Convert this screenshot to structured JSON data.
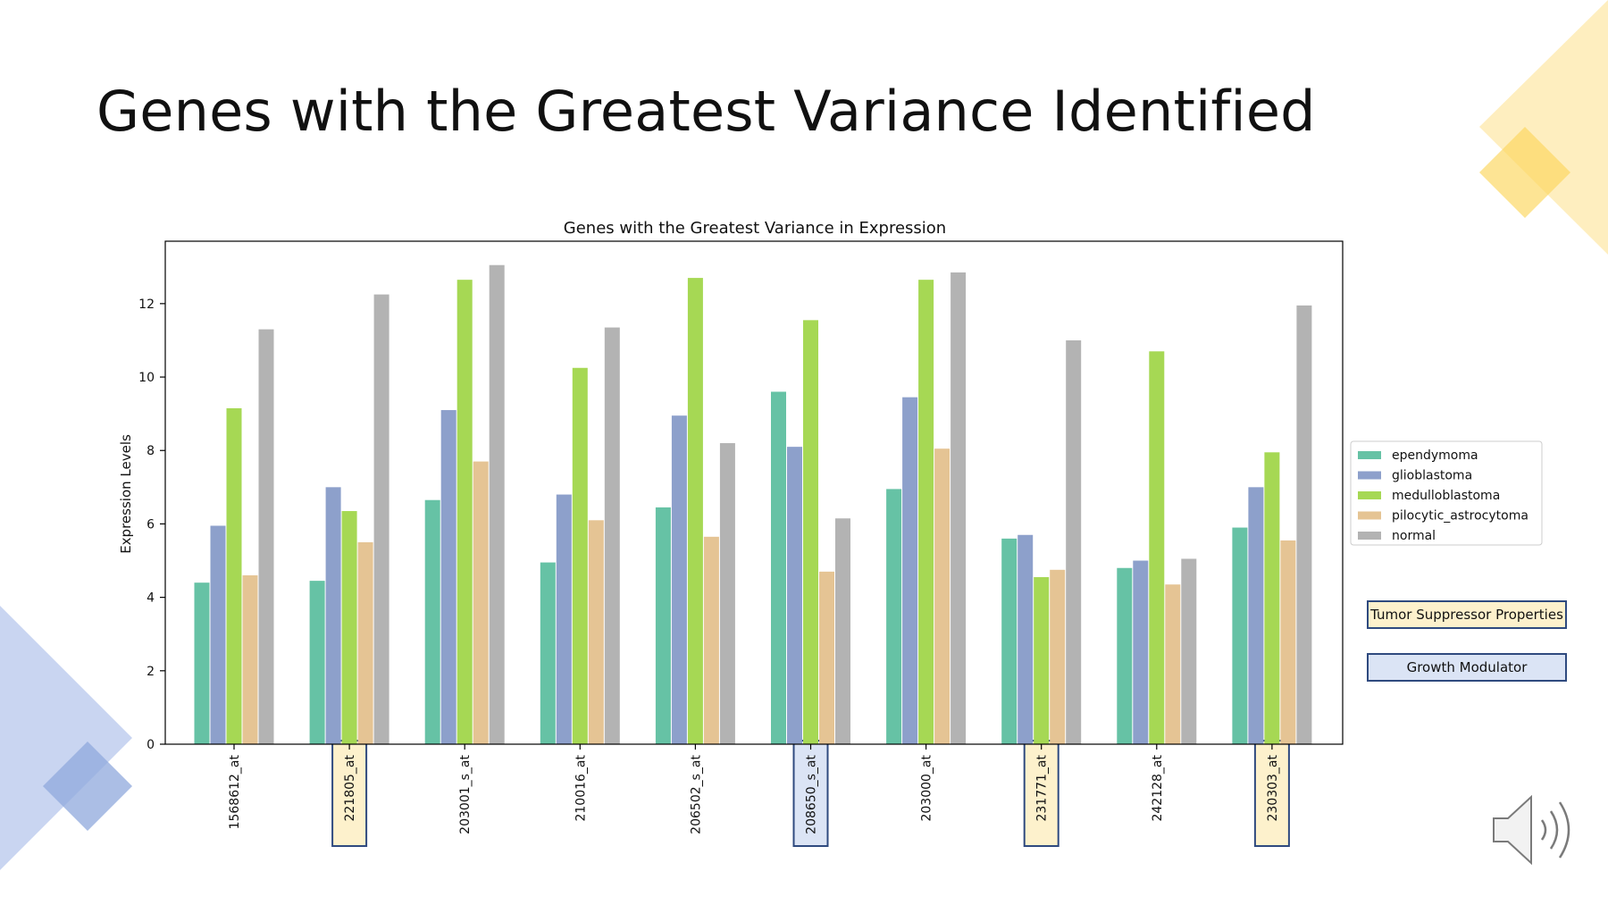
{
  "slide": {
    "title": "Genes with the Greatest Variance Identified"
  },
  "callouts": [
    {
      "label": "Tumor Suppressor Properties",
      "color": "#fdf1cc",
      "genes": [
        "221805_at",
        "231771_at",
        "230303_at"
      ]
    },
    {
      "label": "Growth Modulator",
      "color": "#dbe4f5",
      "genes": [
        "208650_s_at"
      ]
    }
  ],
  "colors": {
    "accent_yellow": "#fde08a",
    "accent_blue": "#b7c7ec",
    "callout_border": "#2f4a7f"
  },
  "icons": [
    "speaker-icon"
  ],
  "chart_data": {
    "type": "bar",
    "title": "Genes with the Greatest Variance in Expression",
    "xlabel": "",
    "ylabel": "Expression Levels",
    "ylim": [
      0,
      13.7
    ],
    "yticks": [
      0,
      2,
      4,
      6,
      8,
      10,
      12
    ],
    "grid": false,
    "legend_position": "right",
    "categories": [
      "1568612_at",
      "221805_at",
      "203001_s_at",
      "210016_at",
      "206502_s_at",
      "208650_s_at",
      "203000_at",
      "231771_at",
      "242128_at",
      "230303_at"
    ],
    "highlighted": {
      "221805_at": "#fdf1cc",
      "231771_at": "#fdf1cc",
      "230303_at": "#fdf1cc",
      "208650_s_at": "#dbe4f5"
    },
    "series": [
      {
        "name": "ependymoma",
        "color": "#66c2a5",
        "values": [
          4.4,
          4.45,
          6.65,
          4.95,
          6.45,
          9.6,
          6.95,
          5.6,
          4.8,
          5.9
        ]
      },
      {
        "name": "glioblastoma",
        "color": "#8da0cb",
        "values": [
          5.95,
          7.0,
          9.1,
          6.8,
          8.95,
          8.1,
          9.45,
          5.7,
          5.0,
          7.0
        ]
      },
      {
        "name": "medulloblastoma",
        "color": "#a6d854",
        "values": [
          9.15,
          6.35,
          12.65,
          10.25,
          12.7,
          11.55,
          12.65,
          4.55,
          10.7,
          7.95
        ]
      },
      {
        "name": "pilocytic_astrocytoma",
        "color": "#e5c494",
        "values": [
          4.6,
          5.5,
          7.7,
          6.1,
          5.65,
          4.7,
          8.05,
          4.75,
          4.35,
          5.55
        ]
      },
      {
        "name": "normal",
        "color": "#b3b3b3",
        "values": [
          11.3,
          12.25,
          13.05,
          11.35,
          8.2,
          6.15,
          12.85,
          11.0,
          5.05,
          11.95
        ]
      }
    ]
  }
}
